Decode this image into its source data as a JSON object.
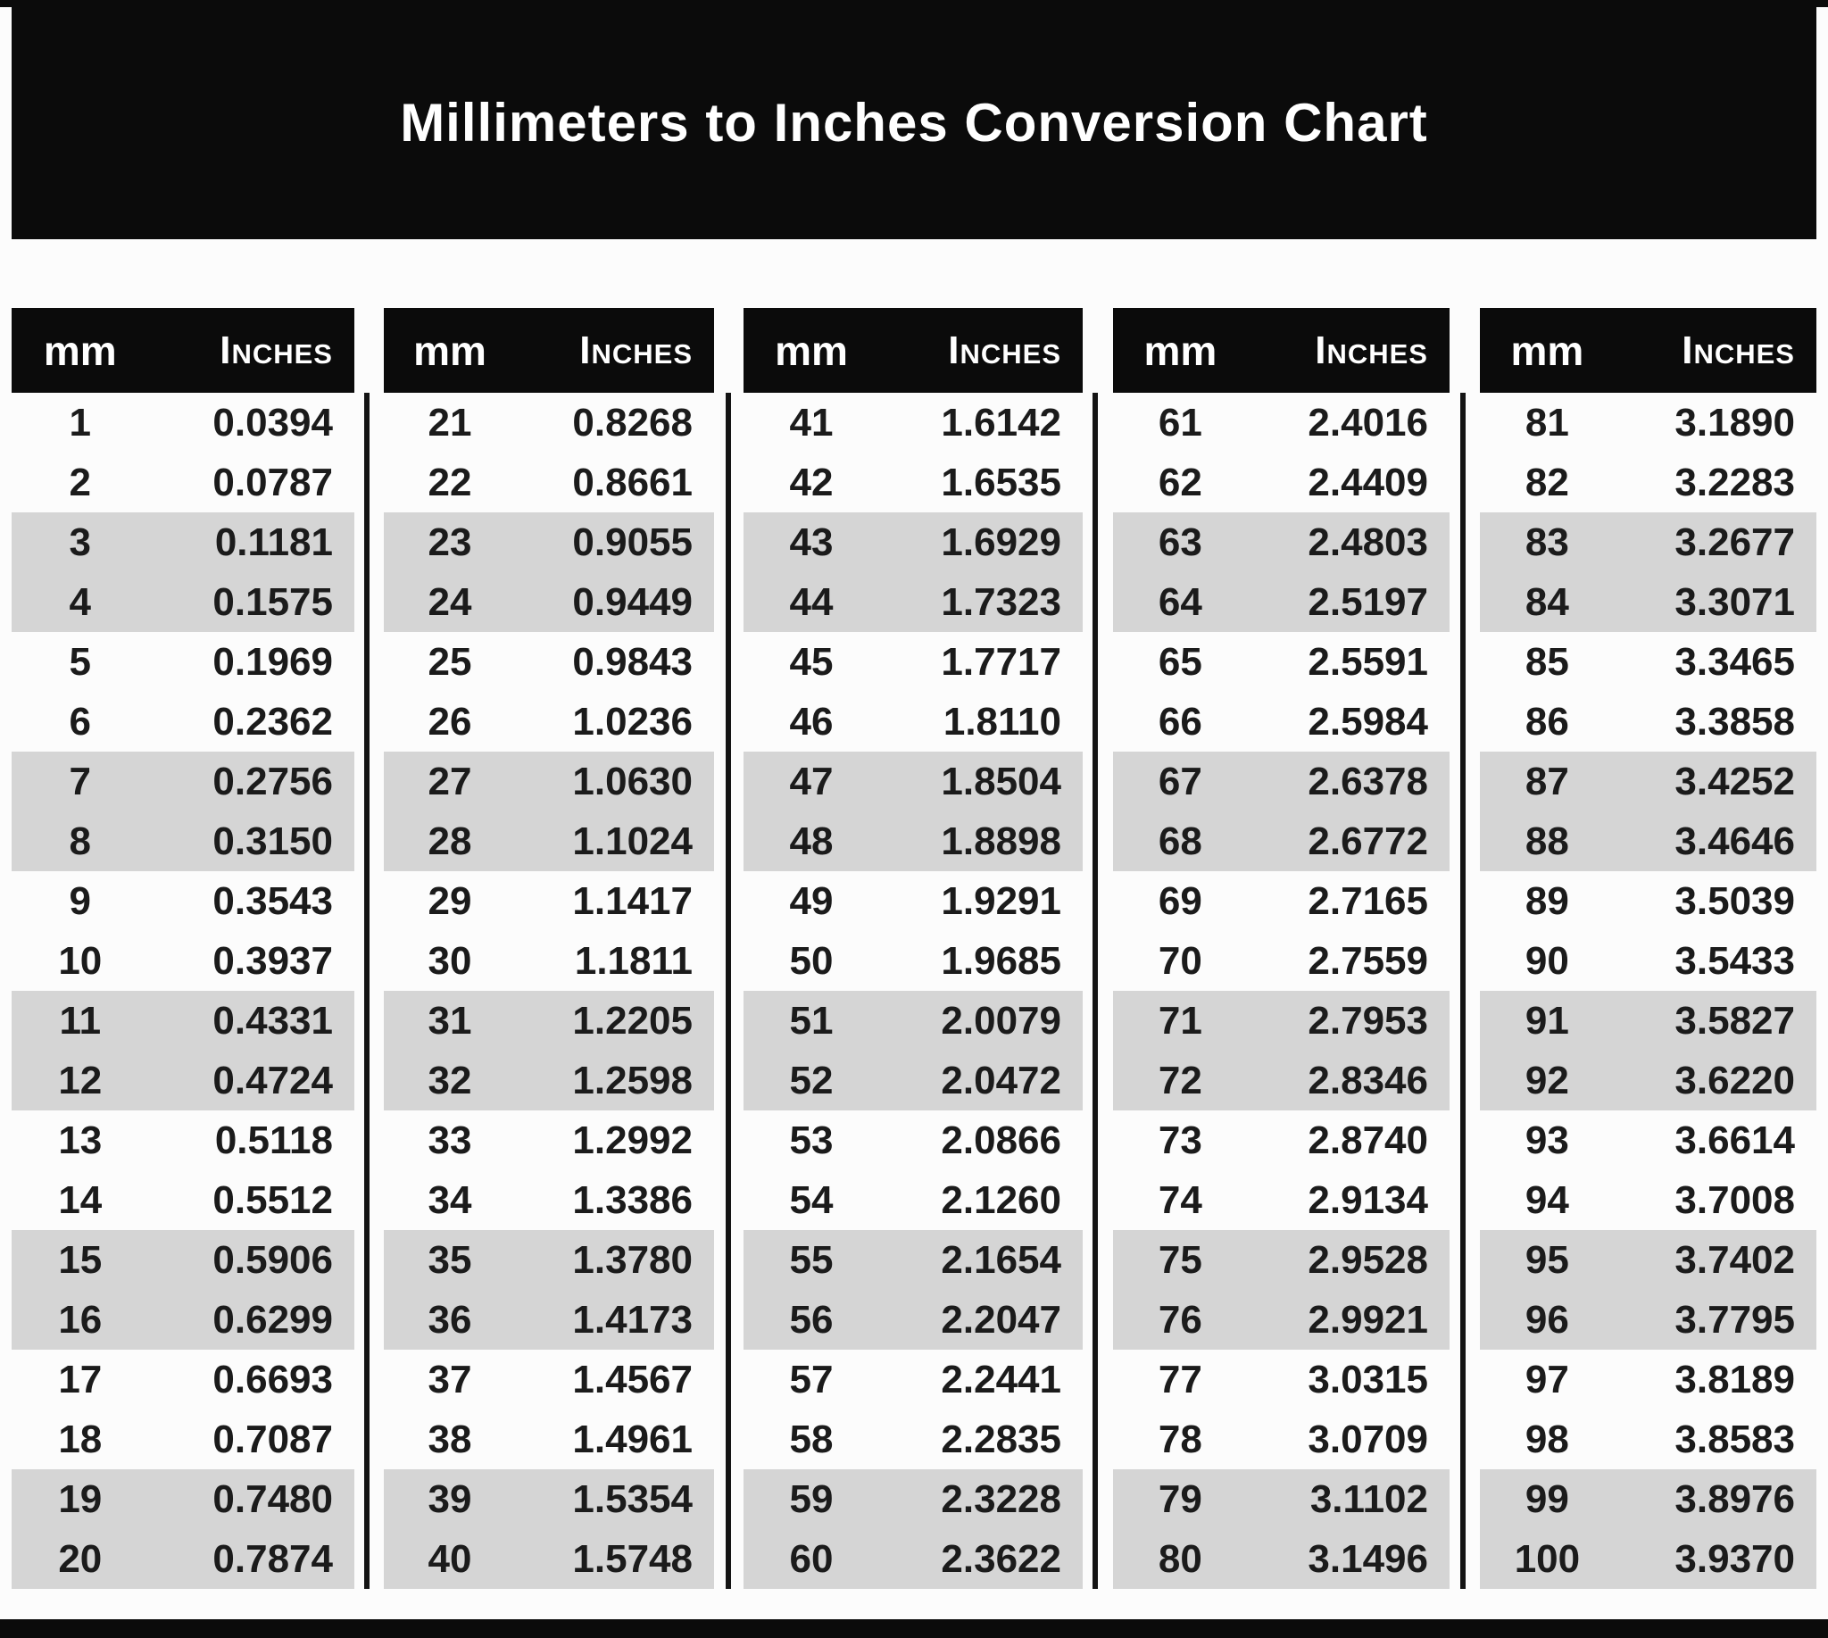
{
  "title": "Millimeters to Inches Conversion Chart",
  "colors": {
    "band_black": "#0b0b0b",
    "stripe_gray": "#d5d5d5",
    "header_text": "#ffffff",
    "data_text": "#1b1b1b",
    "page_background": "#fcfcfc"
  },
  "chart_data": {
    "type": "table",
    "title": "Millimeters to Inches Conversion Chart",
    "column_headers": {
      "mm": "mm",
      "inches": "Inches"
    },
    "layout": {
      "group_count": 5,
      "rows_per_group": 20,
      "stripe_pattern": "rows striped in alternating pairs: two white rows then two gray rows"
    },
    "groups": [
      {
        "rows": [
          [
            "1",
            "0.0394"
          ],
          [
            "2",
            "0.0787"
          ],
          [
            "3",
            "0.1181"
          ],
          [
            "4",
            "0.1575"
          ],
          [
            "5",
            "0.1969"
          ],
          [
            "6",
            "0.2362"
          ],
          [
            "7",
            "0.2756"
          ],
          [
            "8",
            "0.3150"
          ],
          [
            "9",
            "0.3543"
          ],
          [
            "10",
            "0.3937"
          ],
          [
            "11",
            "0.4331"
          ],
          [
            "12",
            "0.4724"
          ],
          [
            "13",
            "0.5118"
          ],
          [
            "14",
            "0.5512"
          ],
          [
            "15",
            "0.5906"
          ],
          [
            "16",
            "0.6299"
          ],
          [
            "17",
            "0.6693"
          ],
          [
            "18",
            "0.7087"
          ],
          [
            "19",
            "0.7480"
          ],
          [
            "20",
            "0.7874"
          ]
        ]
      },
      {
        "rows": [
          [
            "21",
            "0.8268"
          ],
          [
            "22",
            "0.8661"
          ],
          [
            "23",
            "0.9055"
          ],
          [
            "24",
            "0.9449"
          ],
          [
            "25",
            "0.9843"
          ],
          [
            "26",
            "1.0236"
          ],
          [
            "27",
            "1.0630"
          ],
          [
            "28",
            "1.1024"
          ],
          [
            "29",
            "1.1417"
          ],
          [
            "30",
            "1.1811"
          ],
          [
            "31",
            "1.2205"
          ],
          [
            "32",
            "1.2598"
          ],
          [
            "33",
            "1.2992"
          ],
          [
            "34",
            "1.3386"
          ],
          [
            "35",
            "1.3780"
          ],
          [
            "36",
            "1.4173"
          ],
          [
            "37",
            "1.4567"
          ],
          [
            "38",
            "1.4961"
          ],
          [
            "39",
            "1.5354"
          ],
          [
            "40",
            "1.5748"
          ]
        ]
      },
      {
        "rows": [
          [
            "41",
            "1.6142"
          ],
          [
            "42",
            "1.6535"
          ],
          [
            "43",
            "1.6929"
          ],
          [
            "44",
            "1.7323"
          ],
          [
            "45",
            "1.7717"
          ],
          [
            "46",
            "1.8110"
          ],
          [
            "47",
            "1.8504"
          ],
          [
            "48",
            "1.8898"
          ],
          [
            "49",
            "1.9291"
          ],
          [
            "50",
            "1.9685"
          ],
          [
            "51",
            "2.0079"
          ],
          [
            "52",
            "2.0472"
          ],
          [
            "53",
            "2.0866"
          ],
          [
            "54",
            "2.1260"
          ],
          [
            "55",
            "2.1654"
          ],
          [
            "56",
            "2.2047"
          ],
          [
            "57",
            "2.2441"
          ],
          [
            "58",
            "2.2835"
          ],
          [
            "59",
            "2.3228"
          ],
          [
            "60",
            "2.3622"
          ]
        ]
      },
      {
        "rows": [
          [
            "61",
            "2.4016"
          ],
          [
            "62",
            "2.4409"
          ],
          [
            "63",
            "2.4803"
          ],
          [
            "64",
            "2.5197"
          ],
          [
            "65",
            "2.5591"
          ],
          [
            "66",
            "2.5984"
          ],
          [
            "67",
            "2.6378"
          ],
          [
            "68",
            "2.6772"
          ],
          [
            "69",
            "2.7165"
          ],
          [
            "70",
            "2.7559"
          ],
          [
            "71",
            "2.7953"
          ],
          [
            "72",
            "2.8346"
          ],
          [
            "73",
            "2.8740"
          ],
          [
            "74",
            "2.9134"
          ],
          [
            "75",
            "2.9528"
          ],
          [
            "76",
            "2.9921"
          ],
          [
            "77",
            "3.0315"
          ],
          [
            "78",
            "3.0709"
          ],
          [
            "79",
            "3.1102"
          ],
          [
            "80",
            "3.1496"
          ]
        ]
      },
      {
        "rows": [
          [
            "81",
            "3.1890"
          ],
          [
            "82",
            "3.2283"
          ],
          [
            "83",
            "3.2677"
          ],
          [
            "84",
            "3.3071"
          ],
          [
            "85",
            "3.3465"
          ],
          [
            "86",
            "3.3858"
          ],
          [
            "87",
            "3.4252"
          ],
          [
            "88",
            "3.4646"
          ],
          [
            "89",
            "3.5039"
          ],
          [
            "90",
            "3.5433"
          ],
          [
            "91",
            "3.5827"
          ],
          [
            "92",
            "3.6220"
          ],
          [
            "93",
            "3.6614"
          ],
          [
            "94",
            "3.7008"
          ],
          [
            "95",
            "3.7402"
          ],
          [
            "96",
            "3.7795"
          ],
          [
            "97",
            "3.8189"
          ],
          [
            "98",
            "3.8583"
          ],
          [
            "99",
            "3.8976"
          ],
          [
            "100",
            "3.9370"
          ]
        ]
      }
    ]
  }
}
